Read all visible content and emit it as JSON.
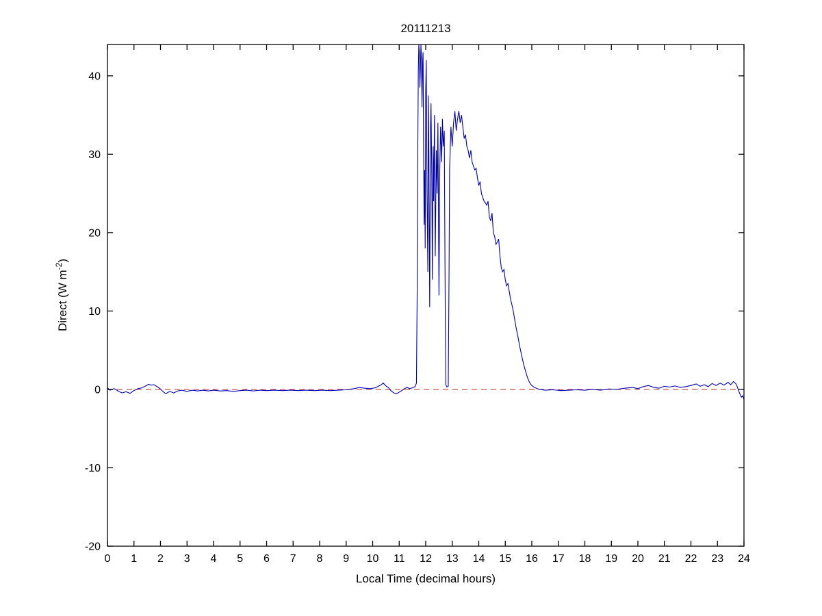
{
  "page": {
    "background": "#ffffff"
  },
  "chart_data": {
    "type": "line",
    "title": "20111213",
    "xlabel": "Local Time (decimal hours)",
    "ylabel": "Direct (W m^-2)",
    "ylabel_parts": {
      "main": "Direct (W m",
      "sup": "-2",
      "end": ")"
    },
    "xlim": [
      0,
      24
    ],
    "ylim": [
      -20,
      44
    ],
    "xticks": [
      0,
      1,
      2,
      3,
      4,
      5,
      6,
      7,
      8,
      9,
      10,
      11,
      12,
      13,
      14,
      15,
      16,
      17,
      18,
      19,
      20,
      21,
      22,
      23,
      24
    ],
    "yticks": [
      -20,
      -10,
      0,
      10,
      20,
      30,
      40
    ],
    "grid": false,
    "legend": "none",
    "axis_color": "#000000",
    "series": [
      {
        "name": "direct-irradiance",
        "color": "#0000b4",
        "style": "solid",
        "points": [
          [
            0,
            0.2
          ],
          [
            0.1,
            -0.1
          ],
          [
            0.25,
            0.1
          ],
          [
            0.4,
            -0.2
          ],
          [
            0.55,
            -0.45
          ],
          [
            0.7,
            -0.3
          ],
          [
            0.85,
            -0.5
          ],
          [
            1.0,
            -0.15
          ],
          [
            1.15,
            0.1
          ],
          [
            1.3,
            0.2
          ],
          [
            1.45,
            0.45
          ],
          [
            1.55,
            0.65
          ],
          [
            1.65,
            0.55
          ],
          [
            1.75,
            0.6
          ],
          [
            1.9,
            0.3
          ],
          [
            2.0,
            0.05
          ],
          [
            2.1,
            -0.3
          ],
          [
            2.2,
            -0.55
          ],
          [
            2.35,
            -0.25
          ],
          [
            2.5,
            -0.45
          ],
          [
            2.65,
            -0.2
          ],
          [
            2.8,
            -0.1
          ],
          [
            3.0,
            -0.25
          ],
          [
            3.2,
            -0.1
          ],
          [
            3.4,
            -0.2
          ],
          [
            3.6,
            -0.1
          ],
          [
            3.8,
            -0.2
          ],
          [
            4.0,
            -0.1
          ],
          [
            4.25,
            -0.2
          ],
          [
            4.5,
            -0.15
          ],
          [
            4.75,
            -0.25
          ],
          [
            5.0,
            -0.15
          ],
          [
            5.25,
            -0.1
          ],
          [
            5.5,
            -0.2
          ],
          [
            5.75,
            -0.1
          ],
          [
            6.0,
            -0.15
          ],
          [
            6.3,
            -0.1
          ],
          [
            6.6,
            -0.15
          ],
          [
            6.9,
            -0.1
          ],
          [
            7.2,
            -0.15
          ],
          [
            7.5,
            -0.1
          ],
          [
            7.8,
            -0.15
          ],
          [
            8.1,
            -0.1
          ],
          [
            8.4,
            -0.15
          ],
          [
            8.7,
            -0.1
          ],
          [
            9.0,
            -0.05
          ],
          [
            9.3,
            0.1
          ],
          [
            9.5,
            0.25
          ],
          [
            9.7,
            0.15
          ],
          [
            9.9,
            0.1
          ],
          [
            10.1,
            0.2
          ],
          [
            10.3,
            0.55
          ],
          [
            10.4,
            0.8
          ],
          [
            10.5,
            0.45
          ],
          [
            10.6,
            0.2
          ],
          [
            10.7,
            -0.2
          ],
          [
            10.8,
            -0.45
          ],
          [
            10.9,
            -0.55
          ],
          [
            11.0,
            -0.35
          ],
          [
            11.1,
            -0.15
          ],
          [
            11.2,
            0.1
          ],
          [
            11.3,
            0.25
          ],
          [
            11.4,
            0.1
          ],
          [
            11.5,
            0.2
          ],
          [
            11.6,
            0.35
          ],
          [
            11.65,
            0.8
          ],
          [
            11.68,
            13
          ],
          [
            11.7,
            30
          ],
          [
            11.72,
            40.5
          ],
          [
            11.74,
            44
          ],
          [
            11.76,
            43
          ],
          [
            11.78,
            38.5
          ],
          [
            11.8,
            41
          ],
          [
            11.82,
            44
          ],
          [
            11.84,
            42
          ],
          [
            11.86,
            36
          ],
          [
            11.88,
            41.5
          ],
          [
            11.9,
            43
          ],
          [
            11.92,
            31
          ],
          [
            11.94,
            21
          ],
          [
            11.96,
            28
          ],
          [
            11.98,
            18
          ],
          [
            12.0,
            38
          ],
          [
            12.02,
            42
          ],
          [
            12.05,
            25
          ],
          [
            12.08,
            15
          ],
          [
            12.1,
            37.5
          ],
          [
            12.12,
            30
          ],
          [
            12.15,
            10.5
          ],
          [
            12.18,
            33
          ],
          [
            12.2,
            36.5
          ],
          [
            12.23,
            27
          ],
          [
            12.25,
            14
          ],
          [
            12.28,
            31
          ],
          [
            12.3,
            24
          ],
          [
            12.33,
            35
          ],
          [
            12.36,
            17
          ],
          [
            12.4,
            30.5
          ],
          [
            12.43,
            25
          ],
          [
            12.46,
            34
          ],
          [
            12.5,
            12
          ],
          [
            12.53,
            28
          ],
          [
            12.56,
            33.5
          ],
          [
            12.6,
            29
          ],
          [
            12.63,
            34.5
          ],
          [
            12.66,
            31
          ],
          [
            12.7,
            33
          ],
          [
            12.72,
            20
          ],
          [
            12.74,
            8
          ],
          [
            12.76,
            0.6
          ],
          [
            12.8,
            0.3
          ],
          [
            12.85,
            0.4
          ],
          [
            12.88,
            15
          ],
          [
            12.9,
            28
          ],
          [
            12.95,
            33.5
          ],
          [
            13.0,
            31
          ],
          [
            13.05,
            34
          ],
          [
            13.1,
            35.5
          ],
          [
            13.15,
            33
          ],
          [
            13.2,
            34.5
          ],
          [
            13.25,
            35.5
          ],
          [
            13.3,
            34
          ],
          [
            13.35,
            35
          ],
          [
            13.4,
            33.5
          ],
          [
            13.45,
            32
          ],
          [
            13.5,
            32.5
          ],
          [
            13.55,
            31
          ],
          [
            13.6,
            30.5
          ],
          [
            13.65,
            29.5
          ],
          [
            13.7,
            30.5
          ],
          [
            13.75,
            29
          ],
          [
            13.8,
            28.5
          ],
          [
            13.85,
            28
          ],
          [
            13.9,
            28.2
          ],
          [
            13.95,
            27
          ],
          [
            14.0,
            26
          ],
          [
            14.05,
            26.5
          ],
          [
            14.1,
            25
          ],
          [
            14.15,
            24.5
          ],
          [
            14.2,
            24
          ],
          [
            14.25,
            23.8
          ],
          [
            14.3,
            23.5
          ],
          [
            14.35,
            24
          ],
          [
            14.4,
            22
          ],
          [
            14.45,
            21.5
          ],
          [
            14.5,
            22.5
          ],
          [
            14.55,
            20
          ],
          [
            14.6,
            19.5
          ],
          [
            14.65,
            18.5
          ],
          [
            14.7,
            18.8
          ],
          [
            14.75,
            19.2
          ],
          [
            14.8,
            17
          ],
          [
            14.85,
            15.5
          ],
          [
            14.9,
            15
          ],
          [
            14.95,
            15.3
          ],
          [
            15.0,
            14
          ],
          [
            15.05,
            13.2
          ],
          [
            15.1,
            13.5
          ],
          [
            15.15,
            12.5
          ],
          [
            15.2,
            11.5
          ],
          [
            15.25,
            10.8
          ],
          [
            15.3,
            10
          ],
          [
            15.35,
            9
          ],
          [
            15.4,
            8
          ],
          [
            15.45,
            7.2
          ],
          [
            15.5,
            6.3
          ],
          [
            15.55,
            5.4
          ],
          [
            15.6,
            4.6
          ],
          [
            15.65,
            3.8
          ],
          [
            15.7,
            3.1
          ],
          [
            15.75,
            2.5
          ],
          [
            15.8,
            1.9
          ],
          [
            15.85,
            1.4
          ],
          [
            15.9,
            1.0
          ],
          [
            15.95,
            0.7
          ],
          [
            16.0,
            0.5
          ],
          [
            16.1,
            0.25
          ],
          [
            16.2,
            0.1
          ],
          [
            16.3,
            0.0
          ],
          [
            16.5,
            -0.1
          ],
          [
            16.8,
            -0.05
          ],
          [
            17.1,
            -0.15
          ],
          [
            17.4,
            -0.1
          ],
          [
            17.7,
            -0.05
          ],
          [
            18.0,
            -0.1
          ],
          [
            18.3,
            0.0
          ],
          [
            18.6,
            -0.1
          ],
          [
            18.9,
            0.05
          ],
          [
            19.2,
            0.0
          ],
          [
            19.5,
            0.15
          ],
          [
            19.8,
            0.25
          ],
          [
            20.0,
            0.1
          ],
          [
            20.2,
            0.35
          ],
          [
            20.4,
            0.5
          ],
          [
            20.6,
            0.25
          ],
          [
            20.8,
            0.15
          ],
          [
            21.0,
            0.4
          ],
          [
            21.2,
            0.3
          ],
          [
            21.4,
            0.45
          ],
          [
            21.6,
            0.25
          ],
          [
            21.8,
            0.35
          ],
          [
            22.0,
            0.5
          ],
          [
            22.2,
            0.7
          ],
          [
            22.35,
            0.4
          ],
          [
            22.5,
            0.6
          ],
          [
            22.65,
            0.35
          ],
          [
            22.8,
            0.75
          ],
          [
            22.95,
            0.5
          ],
          [
            23.1,
            0.8
          ],
          [
            23.25,
            0.55
          ],
          [
            23.4,
            0.9
          ],
          [
            23.5,
            0.6
          ],
          [
            23.6,
            1.0
          ],
          [
            23.7,
            0.7
          ],
          [
            23.75,
            0.3
          ],
          [
            23.8,
            -0.2
          ],
          [
            23.85,
            -0.6
          ],
          [
            23.9,
            -1.0
          ],
          [
            23.95,
            -0.8
          ],
          [
            24.0,
            -1.3
          ]
        ]
      },
      {
        "name": "zero-reference",
        "color": "#cc3a33",
        "style": "dashed",
        "points": [
          [
            0,
            0
          ],
          [
            24,
            0
          ]
        ]
      }
    ]
  }
}
